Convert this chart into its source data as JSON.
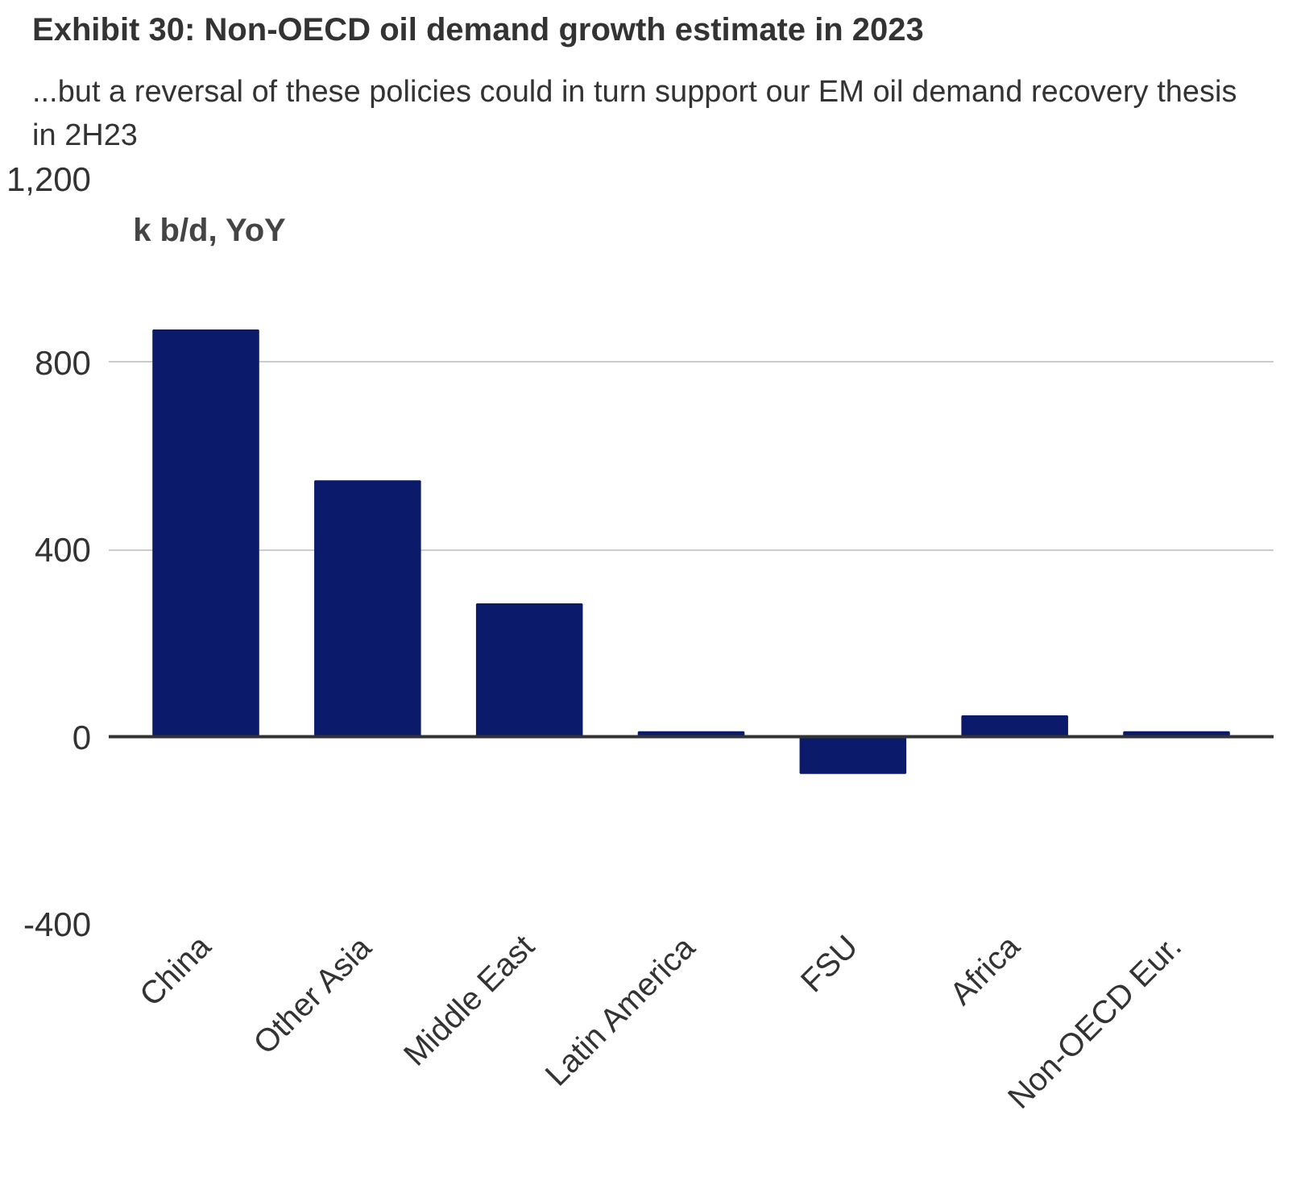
{
  "chart_data": {
    "type": "bar",
    "title": "Exhibit 30: Non-OECD oil demand growth estimate in 2023",
    "subtitle": "...but a reversal of these policies could in turn support our EM oil demand recovery thesis in 2H23",
    "ylabel": "k b/d, YoY",
    "categories": [
      "China",
      "Other Asia",
      "Middle East",
      "Latin America",
      "FSU",
      "Africa",
      "Non-OECD Eur."
    ],
    "values": [
      868,
      546,
      283,
      10,
      -78,
      44,
      10
    ],
    "color": "#0c1a6b",
    "ylim": [
      -400,
      1200
    ],
    "yticks": [
      {
        "value": -400,
        "label": "-400"
      },
      0,
      400,
      800,
      {
        "value": 1200,
        "label": "1,200"
      }
    ],
    "grid": "y"
  }
}
